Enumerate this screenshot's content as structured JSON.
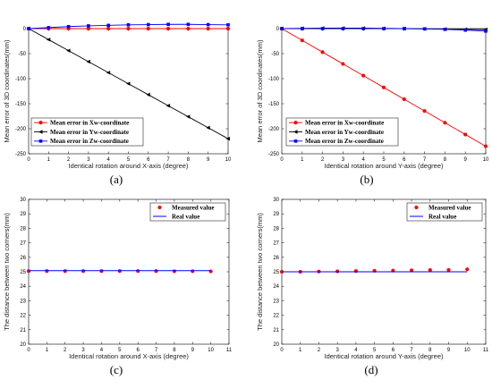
{
  "colors": {
    "red": "#ff0000",
    "black": "#000000",
    "blue": "#0000ff",
    "grid": "#000000"
  },
  "chart_data": [
    {
      "type": "line",
      "panel_label": "(a)",
      "xlabel": "Identical rotation around X-axis (degree)",
      "ylabel": "Mean error of 3D coordinates(mm)",
      "xlim": [
        0,
        10
      ],
      "ylim": [
        -250,
        0
      ],
      "xticks": [
        0,
        1,
        2,
        3,
        4,
        5,
        6,
        7,
        8,
        9,
        10
      ],
      "yticks": [
        -250,
        -200,
        -150,
        -100,
        -50,
        0
      ],
      "x": [
        0,
        1,
        2,
        3,
        4,
        5,
        6,
        7,
        8,
        9,
        10
      ],
      "legend_position": "bottom-left",
      "series": [
        {
          "name": "Mean error in Xw-coordinate",
          "color": "#ff0000",
          "marker": "circle",
          "values": [
            0,
            0,
            0,
            0,
            0,
            0,
            0,
            0,
            0,
            0,
            0
          ]
        },
        {
          "name": "Mean error in Yw-coordinate",
          "color": "#000000",
          "marker": "triangle-left",
          "values": [
            0,
            -22,
            -44,
            -66,
            -88,
            -110,
            -132,
            -154,
            -176,
            -198,
            -220
          ]
        },
        {
          "name": "Mean error in Zw-coordinate",
          "color": "#0000ff",
          "marker": "square",
          "values": [
            0,
            2,
            4,
            5.5,
            6.5,
            7.5,
            8,
            8.5,
            8.5,
            8,
            7.5
          ]
        }
      ]
    },
    {
      "type": "line",
      "panel_label": "(b)",
      "xlabel": "Identical rotation around Y-axis (degree)",
      "ylabel": "Mean error of 3D coordinates(mm)",
      "xlim": [
        0,
        10
      ],
      "ylim": [
        -250,
        0
      ],
      "xticks": [
        0,
        1,
        2,
        3,
        4,
        5,
        6,
        7,
        8,
        9,
        10
      ],
      "yticks": [
        -250,
        -200,
        -150,
        -100,
        -50,
        0
      ],
      "x": [
        0,
        1,
        2,
        3,
        4,
        5,
        6,
        7,
        8,
        9,
        10
      ],
      "legend_position": "bottom-left",
      "series": [
        {
          "name": "Mean error in Xw-coordinate",
          "color": "#ff0000",
          "marker": "circle",
          "values": [
            0,
            -23.5,
            -47,
            -70.5,
            -94,
            -117.5,
            -141,
            -164.5,
            -188,
            -211.5,
            -235
          ]
        },
        {
          "name": "Mean error in Yw-coordinate",
          "color": "#000000",
          "marker": "triangle-left",
          "values": [
            0,
            0.5,
            1,
            1,
            1,
            0.5,
            0,
            -0.5,
            -1,
            -1.5,
            -2
          ]
        },
        {
          "name": "Mean error in Zw-coordinate",
          "color": "#0000ff",
          "marker": "square",
          "values": [
            0,
            0,
            0,
            0,
            0,
            0,
            0,
            -0.5,
            -1.5,
            -3,
            -5
          ]
        }
      ]
    },
    {
      "type": "scatter",
      "panel_label": "(c)",
      "xlabel": "Identical rotation around X-axis (degree)",
      "ylabel": "The distance between two corners(mm)",
      "xlim": [
        0,
        11
      ],
      "ylim": [
        20,
        30
      ],
      "xticks": [
        0,
        1,
        2,
        3,
        4,
        5,
        6,
        7,
        8,
        9,
        10,
        11
      ],
      "yticks": [
        20,
        21,
        22,
        23,
        24,
        25,
        26,
        27,
        28,
        29,
        30
      ],
      "x": [
        0,
        1,
        2,
        3,
        4,
        5,
        6,
        7,
        8,
        9,
        10
      ],
      "legend_position": "top-right",
      "series": [
        {
          "name": "Measured value",
          "color": "#ff0000",
          "marker": "circle",
          "values": [
            25.05,
            25.05,
            25.05,
            25.05,
            25.05,
            25.05,
            25.05,
            25.05,
            25.04,
            25.04,
            25.03
          ]
        },
        {
          "name": "Real value",
          "color": "#0000ff",
          "marker": "line",
          "values": [
            25.08,
            25.08,
            25.08,
            25.08,
            25.08,
            25.08,
            25.08,
            25.08,
            25.08,
            25.08,
            25.08
          ]
        }
      ]
    },
    {
      "type": "scatter",
      "panel_label": "(d)",
      "xlabel": "Identical rotation around Y-axis (degree)",
      "ylabel": "The distance between two corners(mm)",
      "xlim": [
        0,
        11
      ],
      "ylim": [
        20,
        30
      ],
      "xticks": [
        0,
        1,
        2,
        3,
        4,
        5,
        6,
        7,
        8,
        9,
        10,
        11
      ],
      "yticks": [
        20,
        21,
        22,
        23,
        24,
        25,
        26,
        27,
        28,
        29,
        30
      ],
      "x": [
        0,
        1,
        2,
        3,
        4,
        5,
        6,
        7,
        8,
        9,
        10
      ],
      "legend_position": "top-right",
      "series": [
        {
          "name": "Measured value",
          "color": "#ff0000",
          "marker": "circle",
          "values": [
            25.0,
            25.0,
            25.02,
            25.03,
            25.05,
            25.07,
            25.08,
            25.1,
            25.12,
            25.13,
            25.17
          ]
        },
        {
          "name": "Real value",
          "color": "#0000ff",
          "marker": "line",
          "values": [
            25.0,
            25.0,
            25.0,
            25.0,
            25.0,
            25.0,
            25.0,
            25.0,
            25.0,
            25.0,
            25.0
          ]
        }
      ]
    }
  ]
}
